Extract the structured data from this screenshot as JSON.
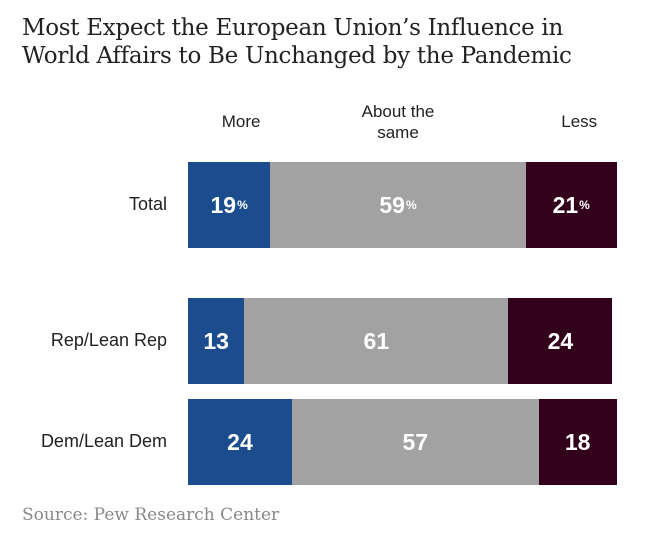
{
  "chart_data": {
    "type": "bar",
    "orientation": "horizontal-stacked",
    "title": "Most Expect the European Union’s Influence in World Affairs to Be Unchanged by the Pandemic",
    "title_lines": [
      "Most Expect the European Union’s Influence in",
      "World Affairs to Be Unchanged by the Pandemic"
    ],
    "categories": [
      "Total",
      "Rep/Lean Rep",
      "Dem/Lean Dem"
    ],
    "series": [
      {
        "name": "More",
        "header_lines": [
          "More"
        ],
        "color": "#1b4d8e",
        "values": [
          19,
          13,
          24
        ]
      },
      {
        "name": "About the same",
        "header_lines": [
          "About the",
          "same"
        ],
        "color": "#a2a2a2",
        "values": [
          59,
          61,
          57
        ]
      },
      {
        "name": "Less",
        "header_lines": [
          "Less"
        ],
        "color": "#33001b",
        "values": [
          21,
          24,
          18
        ]
      }
    ],
    "percent_sign_row": 0,
    "unit": "%",
    "source": "Source: Pew Research Center"
  }
}
